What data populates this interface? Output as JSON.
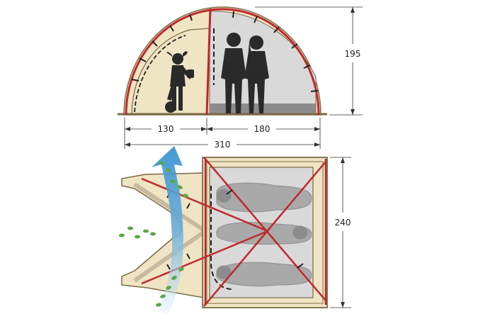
{
  "dimensions": {
    "height": "195",
    "vestibule_length": "130",
    "inner_length": "180",
    "total_length": "310",
    "width": "240"
  },
  "colors": {
    "canvas": "#efe4c4",
    "canvas_edge": "#7a6b45",
    "pole": "#c0282d",
    "inner": "#d9d9d9",
    "inner_floor": "#8c8c8c",
    "silhouette": "#2a2a2a",
    "airflow": "#6aaed8",
    "footprints": "#5aa845"
  },
  "icons": {
    "people": "adult-silhouettes-icon",
    "child": "child-silhouette-icon",
    "sleeping_bags": "sleeping-bag-icon",
    "airflow": "airflow-arrow-icon",
    "footprints": "footprints-icon"
  }
}
